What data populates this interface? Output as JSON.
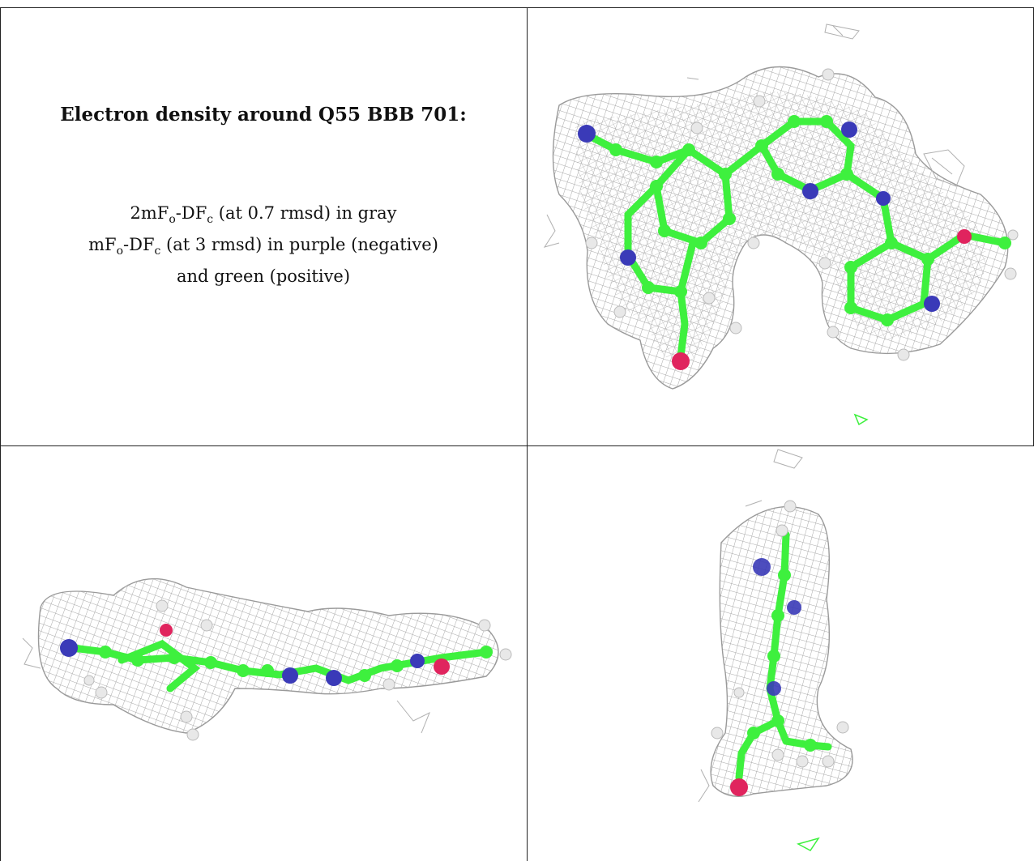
{
  "title": "Electron density around Q55 BBB 701:",
  "lines": [
    {
      "a": "2mF",
      "b": "o",
      "c": "-DF",
      "d": "c",
      "e": " (at 0.7 rmsd) in gray"
    },
    {
      "a": "mF",
      "b": "o",
      "c": "-DF",
      "d": "c",
      "e": " (at 3 rmsd) in purple (negative)"
    },
    {
      "text": "and green (positive)"
    }
  ],
  "colors": {
    "mesh": "#9a9a9a",
    "bond": "#3ef03e",
    "nitrogen": "#3a3ab8",
    "oxygen": "#e0245e",
    "hydrogen": "#e8e8e8",
    "border": "#222222"
  },
  "panels": [
    "top-view",
    "side-view",
    "edge-view"
  ]
}
